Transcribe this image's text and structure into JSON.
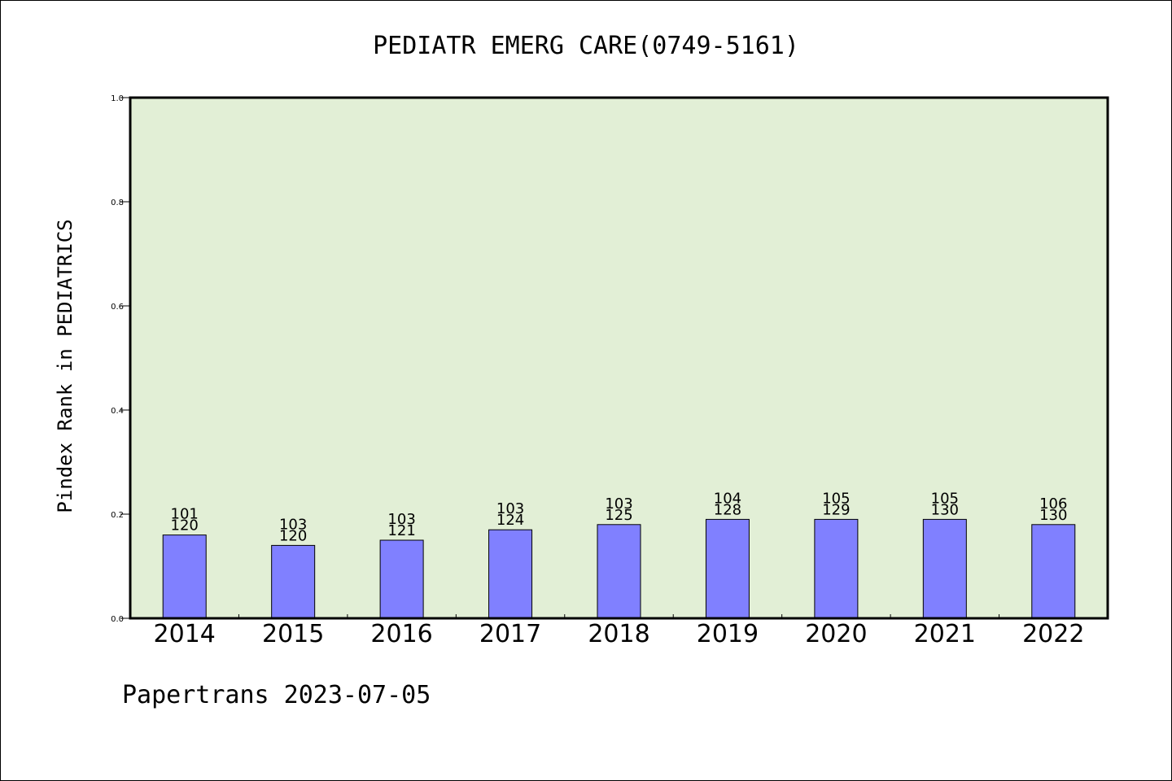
{
  "chart_data": {
    "type": "bar",
    "title": "PEDIATR EMERG CARE(0749-5161)",
    "ylabel": "Pindex Rank in PEDIATRICS",
    "xlabel": "",
    "ylim": [
      0,
      1.0
    ],
    "yticks": [
      "0.0",
      "0.2",
      "0.4",
      "0.6",
      "0.8",
      "1.0"
    ],
    "categories": [
      "2014",
      "2015",
      "2016",
      "2017",
      "2018",
      "2019",
      "2020",
      "2021",
      "2022"
    ],
    "values": [
      0.16,
      0.14,
      0.15,
      0.17,
      0.18,
      0.19,
      0.19,
      0.19,
      0.18
    ],
    "rank_labels": [
      "101",
      "103",
      "103",
      "103",
      "103",
      "104",
      "105",
      "105",
      "106"
    ],
    "total_labels": [
      "120",
      "120",
      "121",
      "124",
      "125",
      "128",
      "129",
      "130",
      "130"
    ],
    "grid": false,
    "colors": {
      "plot_background": "#e2efd6",
      "bar_fill": "#8080ff",
      "bar_stroke": "#000000"
    }
  },
  "footer": "Papertrans 2023-07-05"
}
